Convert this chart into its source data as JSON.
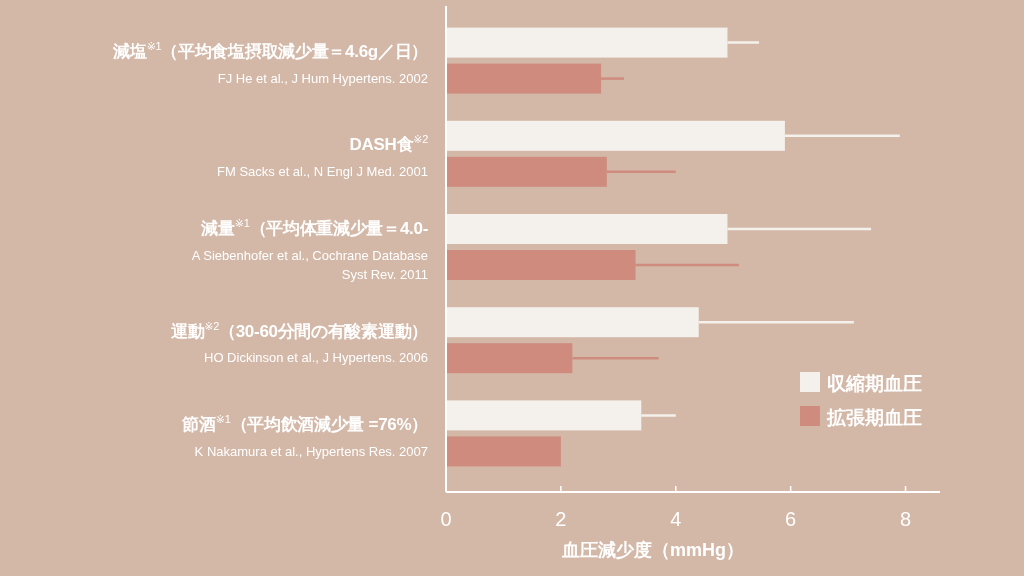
{
  "chart_data": {
    "type": "bar",
    "orientation": "horizontal",
    "xlabel": "血圧減少度（mmHg）",
    "categories": [
      "減塩$^{※1}$（平均食塩摂取減少量＝4.6g／日）",
      "DASH食$^{※2}$",
      "減量$^{※1}$（平均体重減少量＝4.0-",
      "運動$^{※2}$（30-60分間の有酸素運動）",
      "節酒$^{※1}$（平均飲酒減少量 =76%）"
    ],
    "annotations": [
      "FJ He et al., J Hum Hypertens. 2002",
      "FM Sacks et al., N Engl J Med. 2001",
      "A Siebenhofer et al., Cochrane Database Syst Rev. 2011",
      "HO Dickinson et al., J Hypertens. 2006",
      "K Nakamura et al., Hypertens Res. 2007"
    ],
    "series": [
      {
        "name": "収縮期血圧",
        "color": "#f4f0eb",
        "values": [
          4.9,
          5.9,
          4.9,
          4.4,
          3.4
        ],
        "errors": [
          [
            4.9,
            5.45
          ],
          [
            5.9,
            7.9
          ],
          [
            4.9,
            7.4
          ],
          [
            4.4,
            7.1
          ],
          [
            3.4,
            4.0
          ]
        ]
      },
      {
        "name": "拡張期血圧",
        "color": "#cf8c7e",
        "values": [
          2.7,
          2.8,
          3.3,
          2.2,
          2.0
        ],
        "errors": [
          [
            2.7,
            3.1
          ],
          [
            2.8,
            4.0
          ],
          [
            3.3,
            5.1
          ],
          [
            2.2,
            3.7
          ],
          null
        ]
      }
    ],
    "xlim": [
      0,
      8.6
    ],
    "xticks": [
      0,
      2,
      4,
      6,
      8
    ],
    "grid": false,
    "legend": "bottom right"
  }
}
